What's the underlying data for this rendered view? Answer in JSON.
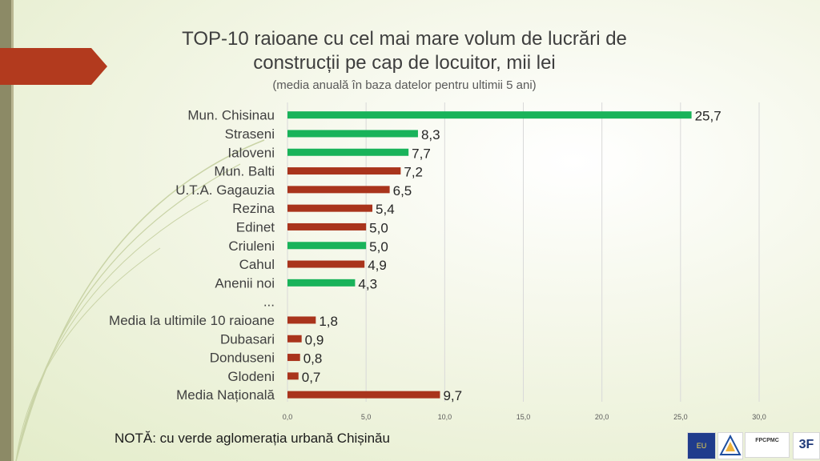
{
  "slide": {
    "title_line1": "TOP-10 raioane cu cel mai mare volum de lucrări de",
    "title_line2": "construcții pe cap de locuitor, mii lei",
    "subtitle": "(media anuală în baza datelor pentru ultimii 5 ani)",
    "note": "NOTĂ: cu verde aglomerația urbană Chișinău",
    "logos": {
      "eu": "EU",
      "fp": "FPCPMC",
      "three_f": "3F"
    }
  },
  "colors": {
    "green": "#19b35a",
    "red": "#a9341c",
    "accent_banner": "#b23a1e",
    "grid": "#d9d9d9"
  },
  "chart_data": {
    "type": "bar",
    "orientation": "horizontal",
    "categories": [
      "Mun. Chisinau",
      "Straseni",
      "Ialoveni",
      "Mun. Balti",
      "U.T.A. Gagauzia",
      "Rezina",
      "Edinet",
      "Criuleni",
      "Cahul",
      "Anenii noi",
      "...",
      "Media la ultimile 10 raioane",
      "Dubasari",
      "Donduseni",
      "Glodeni",
      "Media Națională"
    ],
    "values": [
      25.7,
      8.3,
      7.7,
      7.2,
      6.5,
      5.4,
      5.0,
      5.0,
      4.9,
      4.3,
      null,
      1.8,
      0.9,
      0.8,
      0.7,
      9.7
    ],
    "value_labels": [
      "25,7",
      "8,3",
      "7,7",
      "7,2",
      "6,5",
      "5,4",
      "5,0",
      "5,0",
      "4,9",
      "4,3",
      "",
      "1,8",
      "0,9",
      "0,8",
      "0,7",
      "9,7"
    ],
    "bar_colors": [
      "green",
      "green",
      "green",
      "red",
      "red",
      "red",
      "red",
      "green",
      "red",
      "green",
      "none",
      "red",
      "red",
      "red",
      "red",
      "red"
    ],
    "xlim": [
      0,
      30
    ],
    "xticks": [
      "0,0",
      "5,0",
      "10,0",
      "15,0",
      "20,0",
      "25,0",
      "30,0"
    ],
    "grid": true
  }
}
